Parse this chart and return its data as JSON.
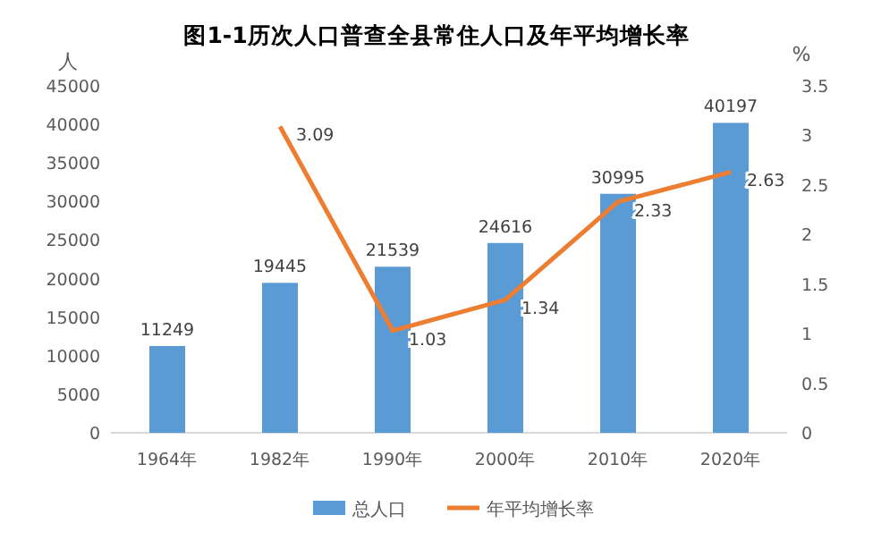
{
  "chart_data": {
    "type": "bar",
    "title": "图1-1历次人口普查全县常住人口及年平均增长率",
    "ylabel": "人",
    "y2label": "%",
    "categories": [
      "1964年",
      "1982年",
      "1990年",
      "2000年",
      "2010年",
      "2020年"
    ],
    "series": [
      {
        "name": "总人口",
        "color": "#5b9bd5",
        "values": [
          11249,
          19445,
          21539,
          24616,
          30995,
          40197
        ]
      },
      {
        "name": "年平均增长率",
        "type": "line",
        "axis": "y2",
        "color": "#ed7d31",
        "values": [
          null,
          3.09,
          1.03,
          1.34,
          2.33,
          2.63
        ]
      }
    ],
    "ylim": [
      0,
      45000
    ],
    "yticks": [
      0,
      5000,
      10000,
      15000,
      20000,
      25000,
      30000,
      35000,
      40000,
      45000
    ],
    "y2lim": [
      0,
      3.5
    ],
    "y2ticks": [
      0,
      0.5,
      1,
      1.5,
      2,
      2.5,
      3,
      3.5
    ],
    "data_labels": true,
    "legend": "bottom",
    "grid": false,
    "marker": "none",
    "line_style": "solid"
  }
}
